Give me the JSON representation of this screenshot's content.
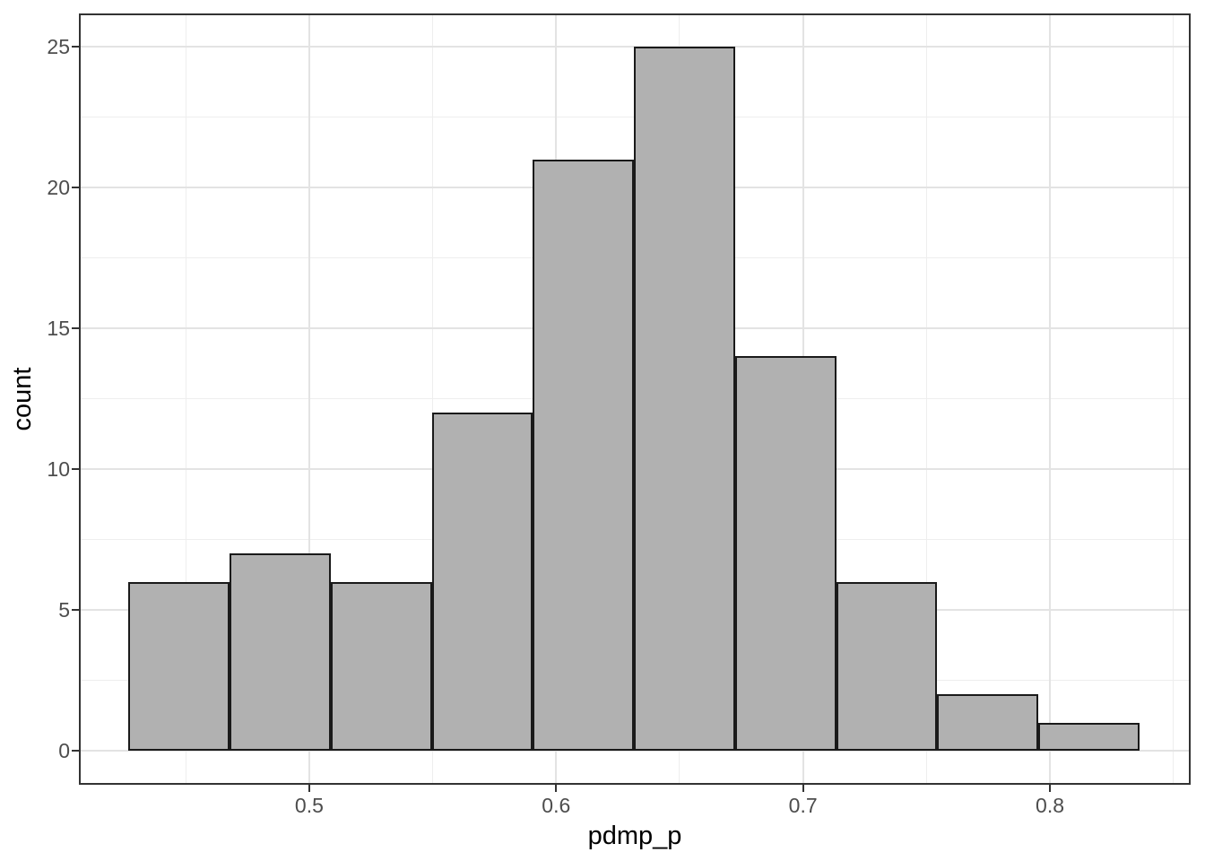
{
  "chart_data": {
    "type": "bar",
    "subtype": "histogram",
    "title": "",
    "xlabel": "pdmp_p",
    "ylabel": "count",
    "bin_edges": [
      0.4268,
      0.4677,
      0.5087,
      0.5496,
      0.5906,
      0.6315,
      0.6725,
      0.7134,
      0.7543,
      0.7953,
      0.8362
    ],
    "counts": [
      6,
      7,
      6,
      12,
      21,
      25,
      14,
      6,
      2,
      1
    ],
    "total_observations": 100,
    "x_ticks": [
      0.5,
      0.6,
      0.7,
      0.8
    ],
    "x_minor_ticks": [
      0.45,
      0.55,
      0.65,
      0.75,
      0.85
    ],
    "y_ticks": [
      0,
      5,
      10,
      15,
      20,
      25
    ],
    "y_minor_ticks": [
      2.5,
      7.5,
      12.5,
      17.5,
      22.5
    ],
    "xlim": [
      0.4067,
      0.857
    ],
    "ylim": [
      -1.21,
      26.18
    ],
    "grid": "major-and-minor",
    "legend": "none",
    "style": {
      "bar_fill": "#b1b1b1",
      "bar_stroke": "#1a1a1a",
      "panel_border": "#333333",
      "grid_major": "#e3e3e3",
      "grid_minor": "#eeeeee",
      "tick_color": "#333333",
      "tick_label_color": "#4d4d4d",
      "axis_title_color": "#000000",
      "background": "#ffffff"
    }
  }
}
